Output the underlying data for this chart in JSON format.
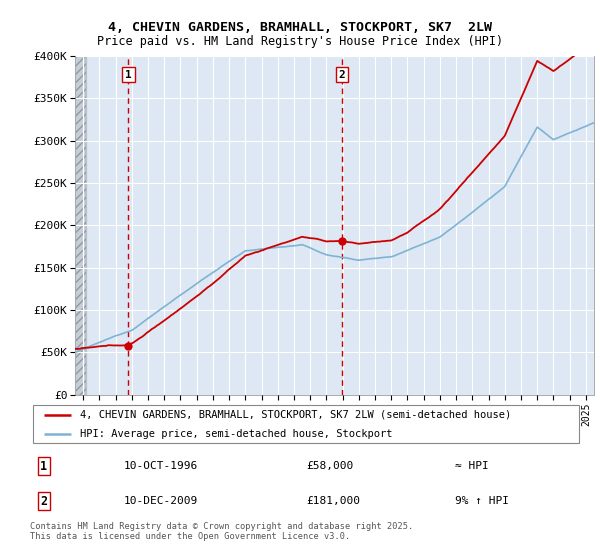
{
  "title_line1": "4, CHEVIN GARDENS, BRAMHALL, STOCKPORT, SK7  2LW",
  "title_line2": "Price paid vs. HM Land Registry's House Price Index (HPI)",
  "ylim": [
    0,
    400000
  ],
  "yticks": [
    0,
    50000,
    100000,
    150000,
    200000,
    250000,
    300000,
    350000,
    400000
  ],
  "ytick_labels": [
    "£0",
    "£50K",
    "£100K",
    "£150K",
    "£200K",
    "£250K",
    "£300K",
    "£350K",
    "£400K"
  ],
  "hpi_color": "#7fb3d3",
  "price_color": "#cc0000",
  "sale1_date": 1996.79,
  "sale1_price": 58000,
  "sale2_date": 2009.96,
  "sale2_price": 181000,
  "legend_line1": "4, CHEVIN GARDENS, BRAMHALL, STOCKPORT, SK7 2LW (semi-detached house)",
  "legend_line2": "HPI: Average price, semi-detached house, Stockport",
  "annotation1_date": "10-OCT-1996",
  "annotation1_price": "£58,000",
  "annotation1_hpi": "≈ HPI",
  "annotation2_date": "10-DEC-2009",
  "annotation2_price": "£181,000",
  "annotation2_hpi": "9% ↑ HPI",
  "footer": "Contains HM Land Registry data © Crown copyright and database right 2025.\nThis data is licensed under the Open Government Licence v3.0.",
  "xmin": 1993.5,
  "xmax": 2025.5,
  "background_color": "#dde8f4",
  "grid_color": "#ffffff"
}
